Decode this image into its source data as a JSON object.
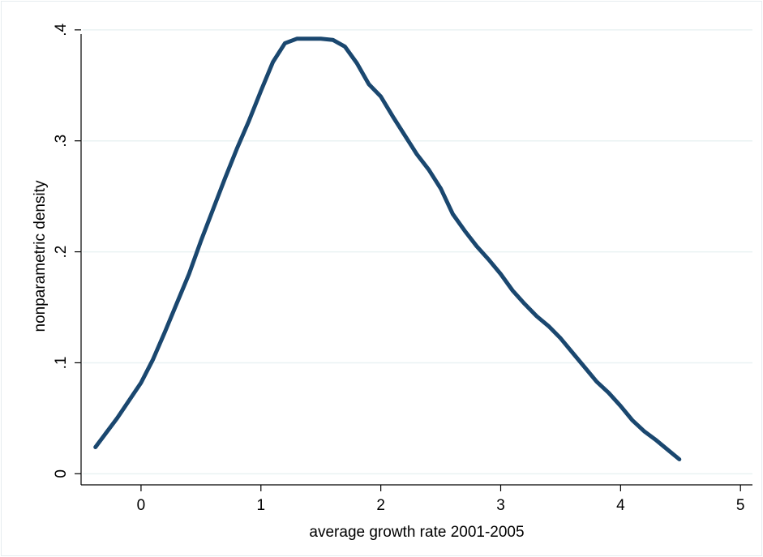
{
  "chart_data": {
    "type": "line",
    "title": "",
    "xlabel": "average growth rate 2001-2005",
    "ylabel": "nonparametric density",
    "xlim": [
      -0.5,
      5.1
    ],
    "ylim": [
      -0.01,
      0.405
    ],
    "xticks": [
      0,
      1,
      2,
      3,
      4,
      5
    ],
    "xtick_labels": [
      "0",
      "1",
      "2",
      "3",
      "4",
      "5"
    ],
    "yticks": [
      0,
      0.1,
      0.2,
      0.3,
      0.4
    ],
    "ytick_labels": [
      "0",
      ".1",
      ".2",
      ".3",
      ".4"
    ],
    "grid": "horizontal",
    "line_color": "#1a476f",
    "grid_color": "#eaf2f3",
    "series": [
      {
        "x": [
          -0.38,
          -0.2,
          0.0,
          0.1,
          0.2,
          0.3,
          0.4,
          0.5,
          0.6,
          0.7,
          0.8,
          0.9,
          1.0,
          1.1,
          1.2,
          1.3,
          1.5,
          1.6,
          1.7,
          1.8,
          1.9,
          2.0,
          2.1,
          2.2,
          2.3,
          2.4,
          2.5,
          2.6,
          2.7,
          2.8,
          2.9,
          3.0,
          3.1,
          3.2,
          3.3,
          3.4,
          3.5,
          3.6,
          3.7,
          3.8,
          3.9,
          4.0,
          4.1,
          4.2,
          4.3,
          4.4,
          4.49
        ],
        "y": [
          0.024,
          0.05,
          0.082,
          0.103,
          0.128,
          0.154,
          0.18,
          0.21,
          0.238,
          0.266,
          0.293,
          0.318,
          0.345,
          0.371,
          0.388,
          0.392,
          0.392,
          0.391,
          0.385,
          0.37,
          0.351,
          0.34,
          0.322,
          0.305,
          0.288,
          0.274,
          0.257,
          0.234,
          0.219,
          0.205,
          0.193,
          0.18,
          0.165,
          0.153,
          0.142,
          0.133,
          0.122,
          0.109,
          0.096,
          0.083,
          0.073,
          0.061,
          0.048,
          0.038,
          0.03,
          0.021,
          0.013
        ]
      }
    ]
  }
}
